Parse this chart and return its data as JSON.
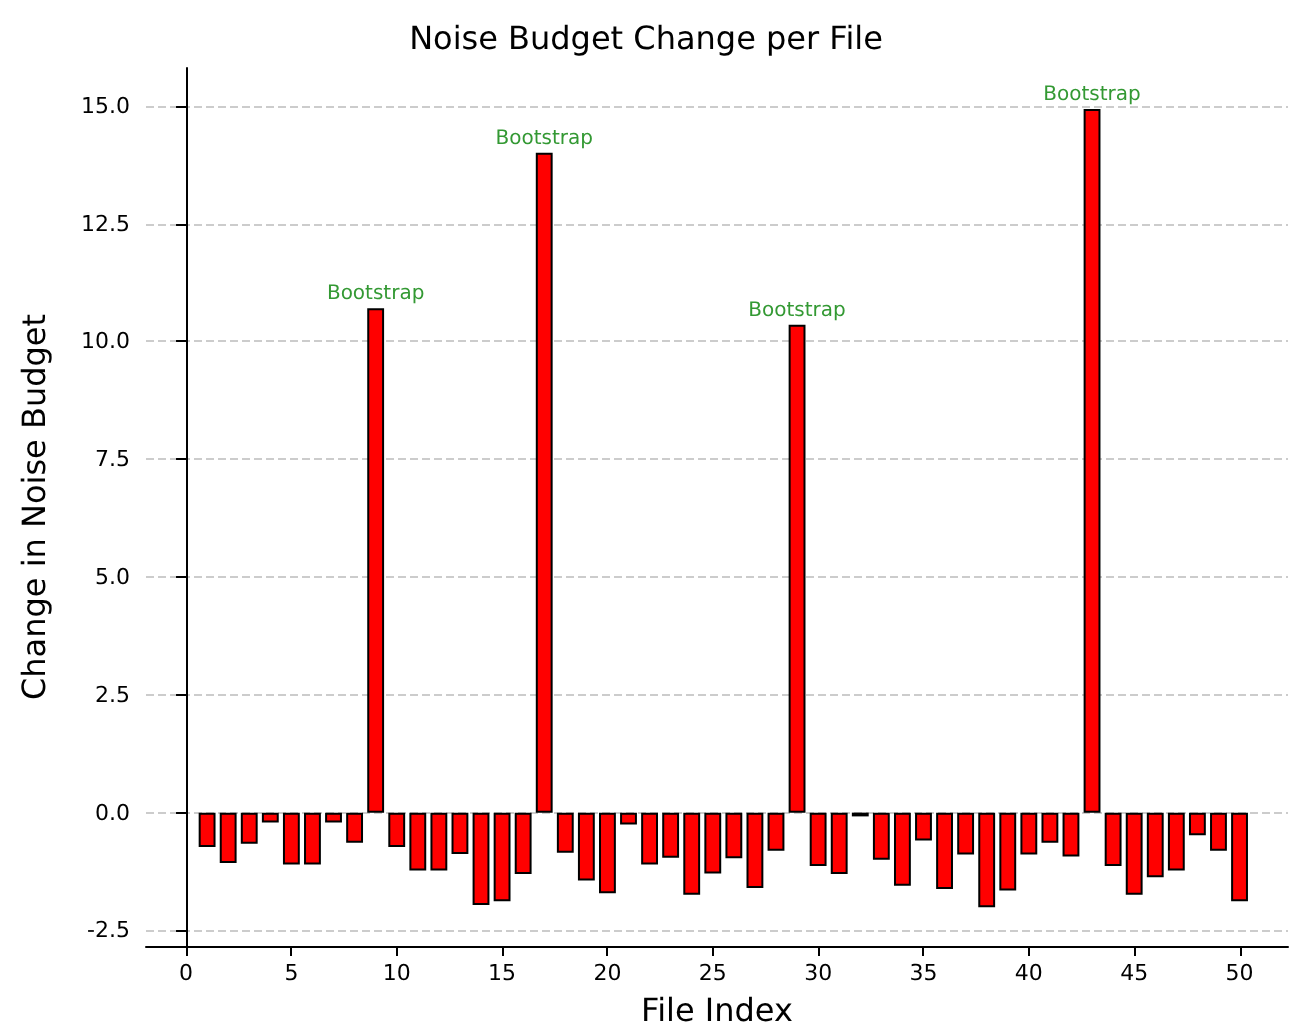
{
  "chart_data": {
    "type": "bar",
    "title": "Noise Budget Change per File",
    "xlabel": "File Index",
    "ylabel": "Change in Noise Budget",
    "x": [
      1,
      2,
      3,
      4,
      5,
      6,
      7,
      8,
      9,
      10,
      11,
      12,
      13,
      14,
      15,
      16,
      17,
      18,
      19,
      20,
      21,
      22,
      23,
      24,
      25,
      26,
      27,
      28,
      29,
      30,
      31,
      32,
      33,
      34,
      35,
      36,
      37,
      38,
      39,
      40,
      41,
      42,
      43,
      44,
      45,
      46,
      47,
      48,
      49,
      50
    ],
    "values": [
      -0.73,
      -1.07,
      -0.66,
      -0.21,
      -1.1,
      -1.1,
      -0.21,
      -0.64,
      10.7,
      -0.73,
      -1.23,
      -1.23,
      -0.88,
      -1.96,
      -1.88,
      -1.3,
      14.0,
      -0.85,
      -1.44,
      -1.71,
      -0.25,
      -1.1,
      -0.96,
      -1.74,
      -1.29,
      -0.97,
      -1.6,
      -0.81,
      10.35,
      -1.13,
      -1.3,
      -0.08,
      -1.0,
      -1.55,
      -0.59,
      -1.62,
      -0.89,
      -2.01,
      -1.65,
      -0.89,
      -0.64,
      -0.93,
      14.93,
      -1.13,
      -1.74,
      -1.37,
      -1.23,
      -0.48,
      -0.81,
      -1.88
    ],
    "color": "#ff0000",
    "xlim": [
      -1.9,
      52.3
    ],
    "xticks": [
      0,
      5,
      10,
      15,
      20,
      25,
      30,
      35,
      40,
      45,
      50
    ],
    "ylim": [
      -2.83,
      15.8
    ],
    "yticks": [
      -2.5,
      {
        "value": 0,
        "label": "0.0"
      },
      2.5,
      {
        "value": 5,
        "label": "5.0"
      },
      7.5,
      {
        "value": 10,
        "label": "10.0"
      },
      12.5,
      {
        "value": 15,
        "label": "15.0"
      }
    ],
    "grid": "y",
    "annotations": [
      {
        "text": "Bootstrap",
        "x": 9,
        "y": 10.7
      },
      {
        "text": "Bootstrap",
        "x": 17,
        "y": 14.0
      },
      {
        "text": "Bootstrap",
        "x": 29,
        "y": 10.35
      },
      {
        "text": "Bootstrap",
        "x": 43,
        "y": 14.93
      }
    ]
  }
}
